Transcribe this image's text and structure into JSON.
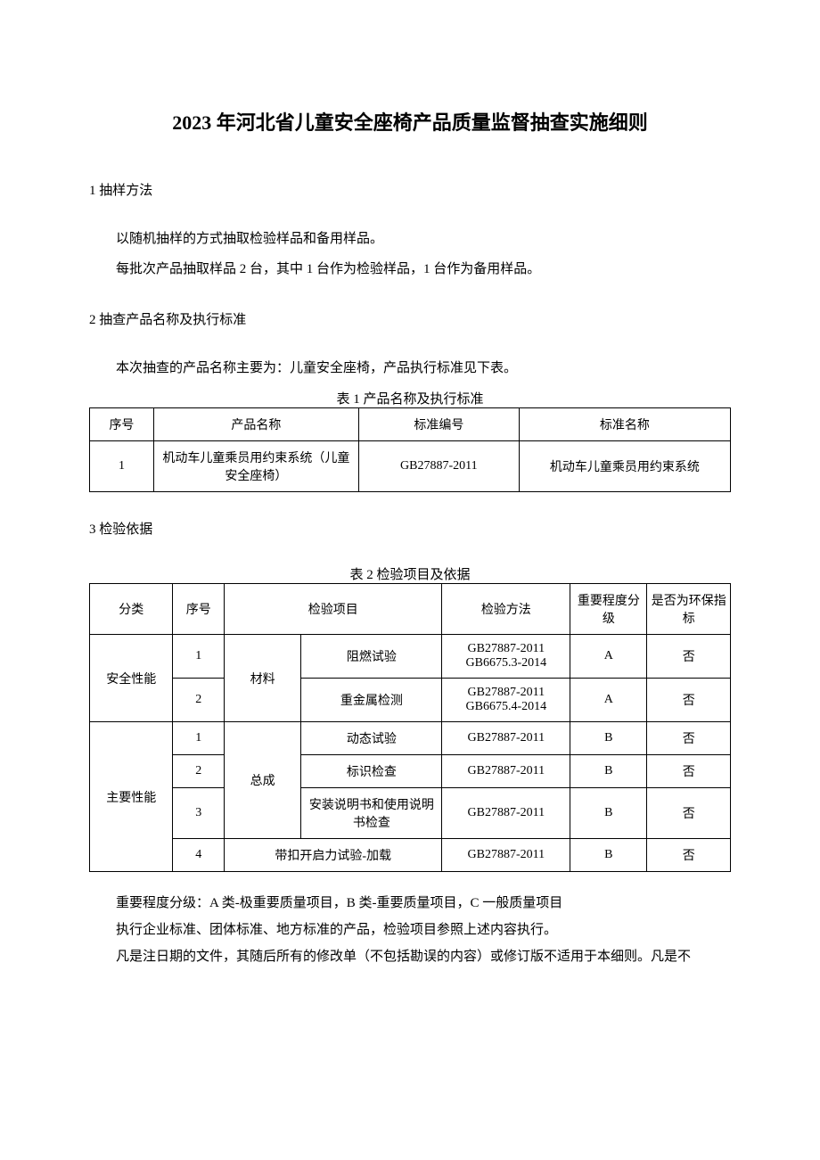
{
  "title": "2023 年河北省儿童安全座椅产品质量监督抽查实施细则",
  "section1": {
    "heading": "1 抽样方法",
    "p1": "以随机抽样的方式抽取检验样品和备用样品。",
    "p2": "每批次产品抽取样品 2 台，其中 1 台作为检验样品，1 台作为备用样品。"
  },
  "section2": {
    "heading": "2 抽查产品名称及执行标准",
    "p1": "本次抽查的产品名称主要为：儿童安全座椅，产品执行标准见下表。",
    "table_caption": "表 1 产品名称及执行标准",
    "headers": {
      "h1": "序号",
      "h2": "产品名称",
      "h3": "标准编号",
      "h4": "标准名称"
    },
    "rows": [
      {
        "c1": "1",
        "c2": "机动车儿童乘员用约束系统（儿童安全座椅）",
        "c3": "GB27887-2011",
        "c4": "机动车儿童乘员用约束系统"
      }
    ]
  },
  "section3": {
    "heading": "3 检验依据",
    "table_caption": "表 2 检验项目及依据",
    "headers": {
      "h1": "分类",
      "h2": "序号",
      "h3": "检验项目",
      "h4": "检验方法",
      "h5": "重要程度分级",
      "h6": "是否为环保指标"
    },
    "group1": {
      "category": "安全性能",
      "subcat": "材料",
      "rows": [
        {
          "idx": "1",
          "item": "阻燃试验",
          "method": "GB27887-2011\nGB6675.3-2014",
          "level": "A",
          "env": "否"
        },
        {
          "idx": "2",
          "item": "重金属检测",
          "method": "GB27887-2011\nGB6675.4-2014",
          "level": "A",
          "env": "否"
        }
      ]
    },
    "group2": {
      "category": "主要性能",
      "subcat": "总成",
      "rows": [
        {
          "idx": "1",
          "item": "动态试验",
          "method": "GB27887-2011",
          "level": "B",
          "env": "否"
        },
        {
          "idx": "2",
          "item": "标识检查",
          "method": "GB27887-2011",
          "level": "B",
          "env": "否"
        },
        {
          "idx": "3",
          "item": "安装说明书和使用说明书检查",
          "method": "GB27887-2011",
          "level": "B",
          "env": "否"
        },
        {
          "idx": "4",
          "item_merged": "带扣开启力试验-加载",
          "method": "GB27887-2011",
          "level": "B",
          "env": "否"
        }
      ]
    },
    "footnote1": "重要程度分级：A 类-极重要质量项目，B 类-重要质量项目，C 一般质量项目",
    "footnote2": "执行企业标准、团体标准、地方标准的产品，检验项目参照上述内容执行。",
    "footnote3": "凡是注日期的文件，其随后所有的修改单（不包括勘误的内容）或修订版不适用于本细则。凡是不"
  }
}
